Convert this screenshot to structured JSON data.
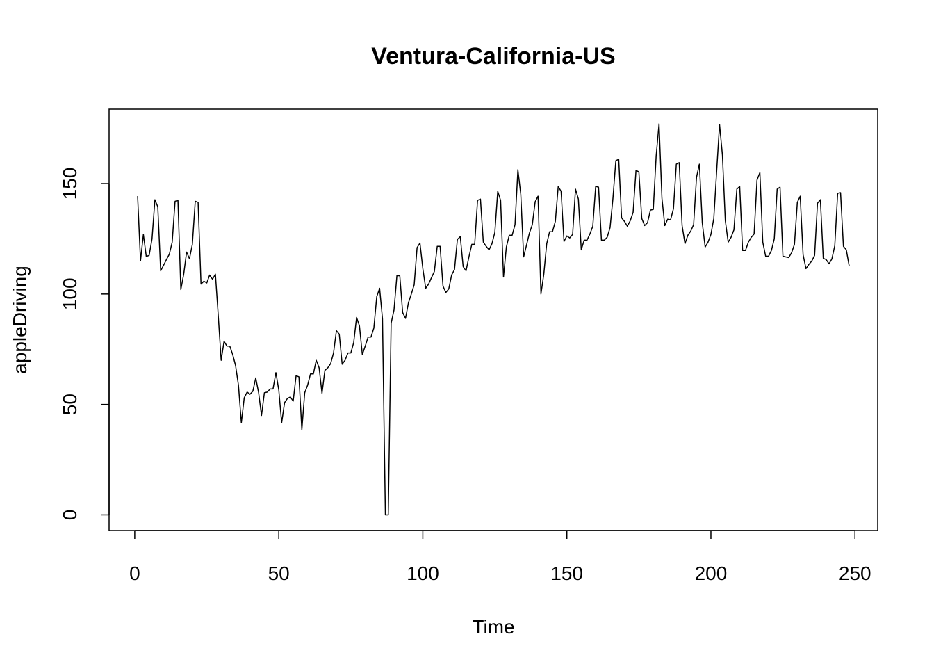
{
  "chart_data": {
    "type": "line",
    "title": "Ventura-California-US",
    "x_label": "Time",
    "y_label": "appleDriving",
    "color": "#000000",
    "xlim": [
      -8.9,
      257.9
    ],
    "ylim": [
      -7.1,
      183.7
    ],
    "xticks": [
      0,
      50,
      100,
      150,
      200,
      250
    ],
    "yticks": [
      0,
      50,
      100,
      150
    ],
    "x": [
      1,
      2,
      3,
      4,
      5,
      6,
      7,
      8,
      9,
      10,
      11,
      12,
      13,
      14,
      15,
      16,
      17,
      18,
      19,
      20,
      21,
      22,
      23,
      24,
      25,
      26,
      27,
      28,
      29,
      30,
      31,
      32,
      33,
      34,
      35,
      36,
      37,
      38,
      39,
      40,
      41,
      42,
      43,
      44,
      45,
      46,
      47,
      48,
      49,
      50,
      51,
      52,
      53,
      54,
      55,
      56,
      57,
      58,
      59,
      60,
      61,
      62,
      63,
      64,
      65,
      66,
      67,
      68,
      69,
      70,
      71,
      72,
      73,
      74,
      75,
      76,
      77,
      78,
      79,
      80,
      81,
      82,
      83,
      84,
      85,
      86,
      87,
      88,
      89,
      90,
      91,
      92,
      93,
      94,
      95,
      96,
      97,
      98,
      99,
      100,
      101,
      102,
      103,
      104,
      105,
      106,
      107,
      108,
      109,
      110,
      111,
      112,
      113,
      114,
      115,
      116,
      117,
      118,
      119,
      120,
      121,
      122,
      123,
      124,
      125,
      126,
      127,
      128,
      129,
      130,
      131,
      132,
      133,
      134,
      135,
      136,
      137,
      138,
      139,
      140,
      141,
      142,
      143,
      144,
      145,
      146,
      147,
      148,
      149,
      150,
      151,
      152,
      153,
      154,
      155,
      156,
      157,
      158,
      159,
      160,
      161,
      162,
      163,
      164,
      165,
      166,
      167,
      168,
      169,
      170,
      171,
      172,
      173,
      174,
      175,
      176,
      177,
      178,
      179,
      180,
      181,
      182,
      183,
      184,
      185,
      186,
      187,
      188,
      189,
      190,
      191,
      192,
      193,
      194,
      195,
      196,
      197,
      198,
      199,
      200,
      201,
      202,
      203,
      204,
      205,
      206,
      207,
      208,
      209,
      210,
      211,
      212,
      213,
      214,
      215,
      216,
      217,
      218,
      219,
      220,
      221,
      222,
      223,
      224,
      225,
      226,
      227,
      228,
      229,
      230,
      231,
      232,
      233,
      234,
      235,
      236,
      237,
      238,
      239,
      240,
      241,
      242,
      243,
      244,
      245,
      246,
      247,
      248
    ],
    "values": [
      144.3,
      115,
      127,
      117,
      117.5,
      125,
      142.7,
      139.5,
      110.5,
      113,
      115.6,
      118,
      123.5,
      142,
      142.4,
      102,
      109,
      119,
      116,
      122.5,
      142,
      141.5,
      104.5,
      105.8,
      105,
      108.6,
      106.7,
      109,
      90,
      70,
      78.6,
      76.4,
      76.4,
      72.6,
      67.6,
      58.7,
      41.7,
      53,
      55.6,
      54.6,
      56,
      62,
      55.3,
      45,
      55.3,
      55.6,
      57,
      57,
      64.4,
      56.5,
      41.7,
      50.8,
      52.7,
      53.4,
      51.5,
      63,
      62.5,
      38.5,
      55.3,
      58.7,
      63.8,
      63.8,
      70,
      66.6,
      55,
      65.4,
      66.6,
      68.5,
      73.3,
      83.4,
      81.8,
      68.2,
      70,
      73.3,
      73.3,
      78,
      89.4,
      85.6,
      72.6,
      76.4,
      80.5,
      80.5,
      84.6,
      98.8,
      102.6,
      88.7,
      0,
      0,
      86.8,
      92.8,
      108.3,
      108.3,
      91.6,
      89,
      96,
      100,
      104.2,
      121,
      123.1,
      111.5,
      102.6,
      104.5,
      107.4,
      110.2,
      121.6,
      121.6,
      103.6,
      100.7,
      102.3,
      108.6,
      111.1,
      124.7,
      126,
      112.4,
      110.5,
      116.8,
      122.5,
      122.5,
      142.4,
      143,
      123.5,
      121.6,
      120,
      122.8,
      127.9,
      146.5,
      142.4,
      107.7,
      121.3,
      126.6,
      126.6,
      131.4,
      156.3,
      145.2,
      116.8,
      122.2,
      127.6,
      131.4,
      141.8,
      144.3,
      100,
      109,
      122.8,
      128.2,
      128.2,
      132.9,
      148.7,
      146.5,
      123.8,
      126.3,
      125.4,
      127,
      147.5,
      143,
      120,
      124.4,
      124.4,
      127.2,
      130.7,
      148.7,
      148.4,
      124.4,
      124.4,
      125.7,
      130.1,
      143.4,
      160.4,
      161,
      134.5,
      132.9,
      130.7,
      133.2,
      137,
      156,
      155.3,
      134.2,
      131,
      132.3,
      138,
      138.3,
      162.6,
      177.1,
      143.4,
      131,
      133.9,
      133.6,
      138.6,
      158.8,
      159.5,
      131,
      122.8,
      126.6,
      128.5,
      131.4,
      152.8,
      158.8,
      132.3,
      121.3,
      123.5,
      127,
      134.2,
      155.7,
      176.8,
      162.9,
      133.2,
      123.5,
      125.7,
      129.1,
      147.5,
      148.7,
      119.7,
      119.7,
      123.5,
      125.7,
      127.2,
      151.6,
      155,
      123.5,
      117.1,
      117.1,
      119.7,
      125,
      147.5,
      148.4,
      117.1,
      116.8,
      116.5,
      118.7,
      122.5,
      141.5,
      144.3,
      117.8,
      111.5,
      113.4,
      114.9,
      117.5,
      141.1,
      142.7,
      116.2,
      115.6,
      113.7,
      115.9,
      121.9,
      145.6,
      145.9,
      121.6,
      120,
      112.7
    ]
  }
}
